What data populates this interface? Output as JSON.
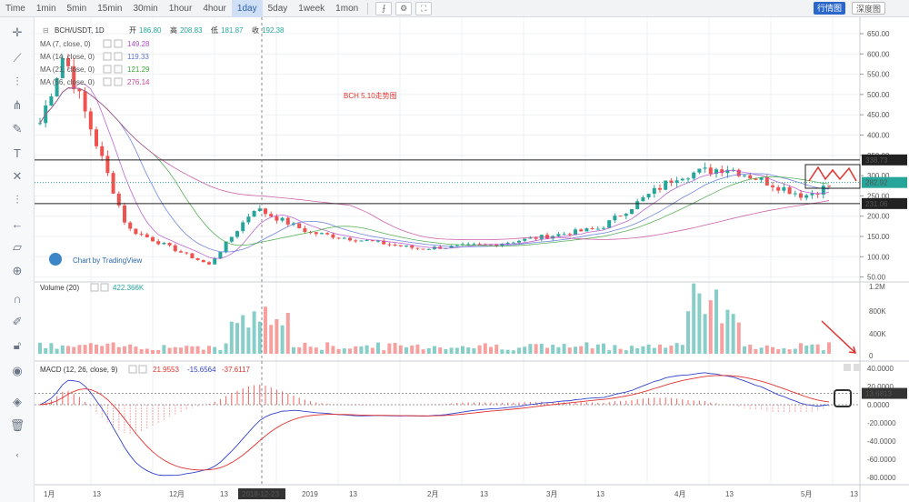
{
  "toolbar": {
    "timeframes": [
      "Time",
      "1min",
      "5min",
      "15min",
      "30min",
      "1hour",
      "4hour",
      "1day",
      "5day",
      "1week",
      "1mon"
    ],
    "active_timeframe": "1day",
    "kline_button": "行情图",
    "depth_button": "深度图"
  },
  "main_pane": {
    "symbol": "BCH/USDT, 1D",
    "ohlc": [
      {
        "label": "开",
        "value": "186.80"
      },
      {
        "label": "高",
        "value": "208.83"
      },
      {
        "label": "低",
        "value": "181.87"
      },
      {
        "label": "收",
        "value": "192.38"
      }
    ],
    "ma": [
      {
        "label": "MA (7, close, 0)",
        "value": "149.28",
        "color": "#b04ec9"
      },
      {
        "label": "MA (14, close, 0)",
        "value": "119.33",
        "color": "#5b73d6"
      },
      {
        "label": "MA (21, close, 0)",
        "value": "121.29",
        "color": "#3da53d"
      },
      {
        "label": "MA (56, close, 0)",
        "value": "276.14",
        "color": "#c6479a"
      }
    ],
    "annotation": "BCH 5.10走势图",
    "watermark": "Chart by TradingView",
    "price_ticks": [
      "650.00",
      "600.00",
      "550.00",
      "500.00",
      "450.00",
      "400.00",
      "350.00",
      "300.00",
      "250.00",
      "200.00",
      "150.00",
      "100.00",
      "50.00"
    ],
    "resistance_label": "338.73",
    "support_label": "231.06",
    "last_price_label": "282.92"
  },
  "volume_pane": {
    "title": "Volume (20)",
    "value": "422.366K",
    "ticks": [
      "1.2M",
      "800K",
      "400K",
      "0"
    ]
  },
  "macd_pane": {
    "title": "MACD (12, 26, close, 9)",
    "values": [
      {
        "value": "21.9553",
        "color": "#e0332f"
      },
      {
        "value": "-15.6564",
        "color": "#3344cc"
      },
      {
        "value": "-37.6117",
        "color": "#e0332f"
      }
    ],
    "ticks": [
      "40.0000",
      "20.0000",
      "0.0000",
      "-20.0000",
      "-40.0000",
      "-60.0000",
      "-80.0000"
    ],
    "current_label": "13.6813"
  },
  "time_axis": {
    "labels": [
      "1月",
      "13",
      "12月",
      "13",
      "2018-12-23",
      "2019",
      "13",
      "2月",
      "13",
      "3月",
      "13",
      "4月",
      "13",
      "5月",
      "13"
    ]
  },
  "colors": {
    "up": "#26a69a",
    "down": "#ef5350",
    "grid": "#eef0f3"
  },
  "chart_data": {
    "type": "candlestick",
    "title": "BCH 5.10走势图",
    "ylim": [
      50,
      660
    ],
    "close_keypoints": [
      {
        "x": "1月",
        "y": 430
      },
      {
        "x": "11月 start",
        "y": 600
      },
      {
        "x": "12月",
        "y": 170
      },
      {
        "x": "2018-12-15",
        "y": 80
      },
      {
        "x": "2018-12-23",
        "y": 220
      },
      {
        "x": "2019",
        "y": 160
      },
      {
        "x": "2月",
        "y": 120
      },
      {
        "x": "3月",
        "y": 130
      },
      {
        "x": "4月 start",
        "y": 170
      },
      {
        "x": "4月",
        "y": 300
      },
      {
        "x": "13",
        "y": 320
      },
      {
        "x": "5月",
        "y": 250
      },
      {
        "x": "end",
        "y": 283
      }
    ],
    "levels": [
      338.73,
      231.06
    ]
  }
}
